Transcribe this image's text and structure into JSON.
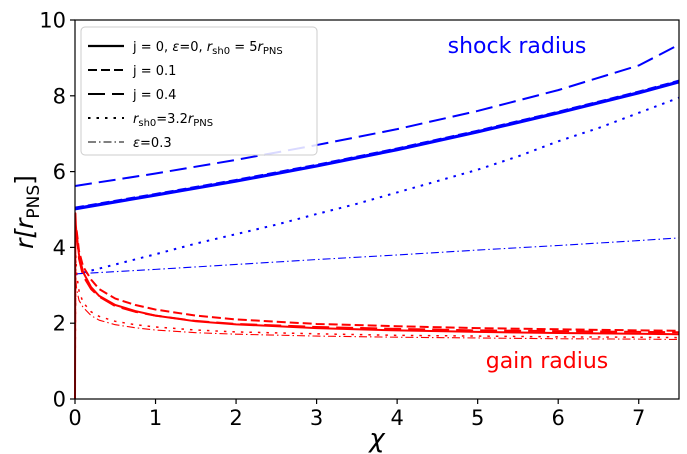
{
  "chart_data": {
    "type": "line",
    "xlabel": "χ",
    "ylabel_main": "r[r",
    "ylabel_sub": "PNS",
    "ylabel_close": "]",
    "xlim": [
      0,
      7.5
    ],
    "ylim": [
      0,
      10
    ],
    "x_ticks": [
      "0",
      "1",
      "2",
      "3",
      "4",
      "5",
      "6",
      "7"
    ],
    "y_ticks": [
      "0",
      "2",
      "4",
      "6",
      "8",
      "10"
    ],
    "grid": false,
    "legend_position": "top-left",
    "colors": {
      "shock": "#0000ff",
      "gain": "#ff0000"
    },
    "annotations": {
      "shock": "shock radius",
      "gain": "gain radius"
    },
    "legend": [
      {
        "style": "solid",
        "segments": [
          {
            "t": "j = 0, "
          },
          {
            "t": "ε",
            "i": true
          },
          {
            "t": "=0, "
          },
          {
            "t": "r",
            "i": true
          },
          {
            "t": "sh0",
            "sub": true
          },
          {
            "t": " = 5"
          },
          {
            "t": "r",
            "i": true
          },
          {
            "t": "PNS",
            "sub": true
          }
        ]
      },
      {
        "style": "dash-short",
        "segments": [
          {
            "t": "j = 0.1"
          }
        ]
      },
      {
        "style": "dash-long",
        "segments": [
          {
            "t": "j = 0.4"
          }
        ]
      },
      {
        "style": "dotted",
        "segments": [
          {
            "t": "r",
            "i": true
          },
          {
            "t": "sh0",
            "sub": true
          },
          {
            "t": "=3.2"
          },
          {
            "t": "r",
            "i": true
          },
          {
            "t": "PNS",
            "sub": true
          }
        ]
      },
      {
        "style": "dashdot",
        "segments": [
          {
            "t": "ε",
            "i": true
          },
          {
            "t": "=0.3"
          }
        ]
      }
    ],
    "series": [
      {
        "group": "shock",
        "style": "solid",
        "width": 3.2,
        "x": [
          0,
          1,
          2,
          3,
          4,
          5,
          6,
          7,
          7.5
        ],
        "y": [
          5.02,
          5.38,
          5.75,
          6.15,
          6.58,
          7.05,
          7.55,
          8.08,
          8.37
        ]
      },
      {
        "group": "shock",
        "style": "dash-short",
        "width": 2,
        "x": [
          0,
          1,
          2,
          3,
          4,
          5,
          6,
          7,
          7.5
        ],
        "y": [
          5.05,
          5.41,
          5.78,
          6.18,
          6.61,
          7.08,
          7.58,
          8.11,
          8.4
        ]
      },
      {
        "group": "shock",
        "style": "dash-long",
        "width": 2,
        "x": [
          0,
          1,
          2,
          3,
          4,
          5,
          6,
          7,
          7.5
        ],
        "y": [
          5.62,
          5.95,
          6.31,
          6.7,
          7.12,
          7.6,
          8.15,
          8.8,
          9.35
        ]
      },
      {
        "group": "shock",
        "style": "dotted",
        "width": 2,
        "x": [
          0,
          0.5,
          1,
          1.5,
          2,
          2.5,
          3,
          3.5,
          4,
          4.5,
          5,
          5.5,
          6,
          6.5,
          7,
          7.5
        ],
        "y": [
          3.28,
          3.55,
          3.82,
          4.1,
          4.35,
          4.6,
          4.88,
          5.15,
          5.45,
          5.75,
          6.05,
          6.4,
          6.8,
          7.15,
          7.55,
          7.95
        ]
      },
      {
        "group": "shock",
        "style": "dashdot",
        "width": 1.1,
        "x": [
          0,
          1,
          2,
          3,
          4,
          5,
          6,
          7,
          7.5
        ],
        "y": [
          3.3,
          3.42,
          3.55,
          3.68,
          3.8,
          3.93,
          4.05,
          4.18,
          4.25
        ]
      },
      {
        "group": "gain",
        "style": "solid",
        "width": 2,
        "x": [
          0,
          0.005,
          0.01,
          0.02,
          0.05,
          0.1,
          0.2,
          0.3,
          0.5,
          0.75,
          1,
          1.5,
          2,
          3,
          4,
          5,
          6,
          7,
          7.5
        ],
        "y": [
          0,
          4.9,
          4.6,
          4.3,
          3.8,
          3.35,
          2.95,
          2.72,
          2.48,
          2.32,
          2.2,
          2.05,
          1.97,
          1.87,
          1.81,
          1.77,
          1.74,
          1.72,
          1.71
        ]
      },
      {
        "group": "gain",
        "style": "dash-short",
        "width": 2,
        "x": [
          0.02,
          0.05,
          0.1,
          0.2,
          0.3,
          0.5,
          0.75,
          1,
          1.5,
          2,
          3,
          4,
          5,
          6,
          7,
          7.5
        ],
        "y": [
          4.45,
          3.9,
          3.5,
          3.15,
          2.9,
          2.65,
          2.48,
          2.36,
          2.2,
          2.1,
          1.98,
          1.92,
          1.87,
          1.84,
          1.81,
          1.8
        ]
      },
      {
        "group": "gain",
        "style": "dash-long",
        "width": 2,
        "x": [
          0.02,
          0.05,
          0.1,
          0.2,
          0.3,
          0.5,
          0.75,
          1,
          1.5,
          2,
          3,
          4,
          5,
          6,
          7,
          7.5
        ],
        "y": [
          4.4,
          3.7,
          3.25,
          2.9,
          2.7,
          2.45,
          2.3,
          2.2,
          2.06,
          1.98,
          1.9,
          1.85,
          1.81,
          1.79,
          1.77,
          1.76
        ]
      },
      {
        "group": "gain",
        "style": "dotted",
        "width": 1.5,
        "x": [
          0,
          0.01,
          0.02,
          0.05,
          0.1,
          0.2,
          0.3,
          0.5,
          0.75,
          1,
          1.5,
          2,
          3,
          4,
          5,
          6,
          7,
          7.5
        ],
        "y": [
          0,
          3.8,
          3.3,
          2.85,
          2.55,
          2.3,
          2.18,
          2.05,
          1.96,
          1.9,
          1.82,
          1.77,
          1.72,
          1.68,
          1.66,
          1.64,
          1.63,
          1.62
        ]
      },
      {
        "group": "gain",
        "style": "dashdot",
        "width": 1.1,
        "x": [
          0,
          0.01,
          0.02,
          0.05,
          0.1,
          0.2,
          0.3,
          0.5,
          0.75,
          1,
          1.5,
          2,
          3,
          4,
          5,
          6,
          7,
          7.5
        ],
        "y": [
          0,
          3.2,
          2.9,
          2.6,
          2.42,
          2.2,
          2.08,
          1.96,
          1.88,
          1.82,
          1.75,
          1.71,
          1.66,
          1.63,
          1.61,
          1.59,
          1.58,
          1.57
        ]
      }
    ]
  }
}
